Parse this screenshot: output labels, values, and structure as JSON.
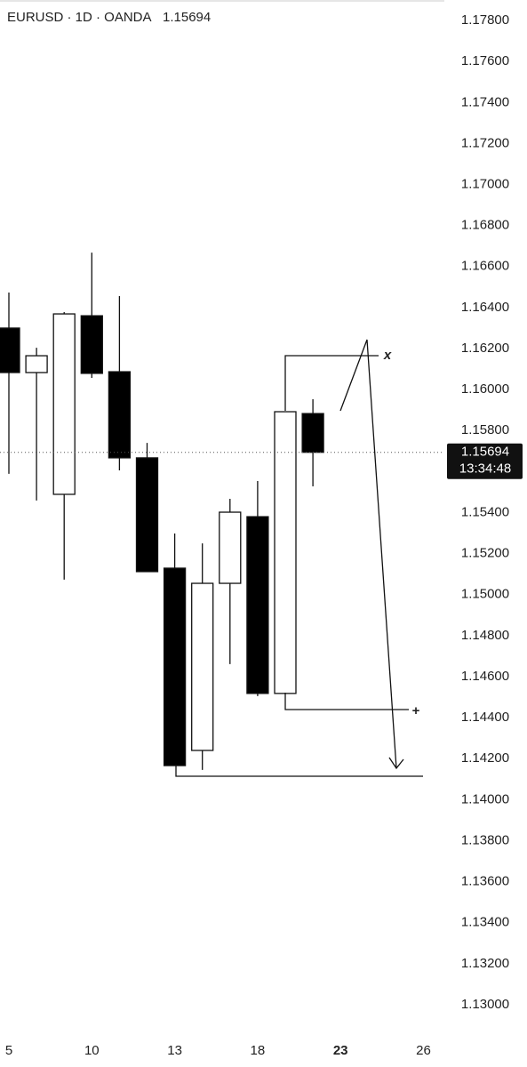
{
  "chart_data": {
    "type": "candlestick",
    "title": "EURUSD · 1D · OANDA",
    "last_price": 1.15694,
    "countdown": "13:34:48",
    "annotations": [
      "x",
      "+"
    ],
    "categories": [
      "5",
      null,
      null,
      "10",
      null,
      null,
      "13",
      null,
      null,
      "18",
      null,
      null,
      "23",
      null,
      null,
      "26"
    ],
    "open": [
      1.163,
      1.16083,
      1.15489,
      1.1636,
      1.16087,
      1.15667,
      1.15129,
      1.1424,
      1.15055,
      1.1538,
      1.14518,
      1.15883,
      null,
      null,
      null,
      null
    ],
    "high": [
      1.16473,
      1.16204,
      1.16378,
      1.16668,
      1.16456,
      1.1574,
      1.15298,
      1.1525,
      1.15467,
      1.15554,
      1.15892,
      1.15953,
      null,
      null,
      null,
      null
    ],
    "low": [
      1.15589,
      1.15459,
      1.15073,
      1.16057,
      1.15606,
      1.15112,
      1.14166,
      1.14145,
      1.14661,
      1.14505,
      1.14518,
      1.15528,
      null,
      null,
      null,
      null
    ],
    "close": [
      1.16083,
      1.16165,
      1.16369,
      1.16079,
      1.15667,
      1.15112,
      1.14166,
      1.15055,
      1.15402,
      1.14518,
      1.15892,
      1.15694,
      null,
      null,
      null,
      null
    ],
    "up_color": "#ffffff",
    "down_color": "#000000",
    "ylim": [
      1.1284,
      1.179
    ],
    "yticks": [
      {
        "value": 1.178,
        "label": "1.17800"
      },
      {
        "value": 1.176,
        "label": "1.17600"
      },
      {
        "value": 1.174,
        "label": "1.17400"
      },
      {
        "value": 1.172,
        "label": "1.17200"
      },
      {
        "value": 1.17,
        "label": "1.17000"
      },
      {
        "value": 1.168,
        "label": "1.16800"
      },
      {
        "value": 1.166,
        "label": "1.16600"
      },
      {
        "value": 1.164,
        "label": "1.16400"
      },
      {
        "value": 1.162,
        "label": "1.16200"
      },
      {
        "value": 1.16,
        "label": "1.16000"
      },
      {
        "value": 1.158,
        "label": "1.15800"
      },
      {
        "value": 1.156,
        "label": "1.15600"
      },
      {
        "value": 1.154,
        "label": "1.15400"
      },
      {
        "value": 1.152,
        "label": "1.15200"
      },
      {
        "value": 1.15,
        "label": "1.15000"
      },
      {
        "value": 1.148,
        "label": "1.14800"
      },
      {
        "value": 1.146,
        "label": "1.14600"
      },
      {
        "value": 1.144,
        "label": "1.14400"
      },
      {
        "value": 1.142,
        "label": "1.14200"
      },
      {
        "value": 1.14,
        "label": "1.14000"
      },
      {
        "value": 1.138,
        "label": "1.13800"
      },
      {
        "value": 1.136,
        "label": "1.13600"
      },
      {
        "value": 1.134,
        "label": "1.13400"
      },
      {
        "value": 1.132,
        "label": "1.13200"
      },
      {
        "value": 1.13,
        "label": "1.13000"
      }
    ],
    "grid": false
  }
}
